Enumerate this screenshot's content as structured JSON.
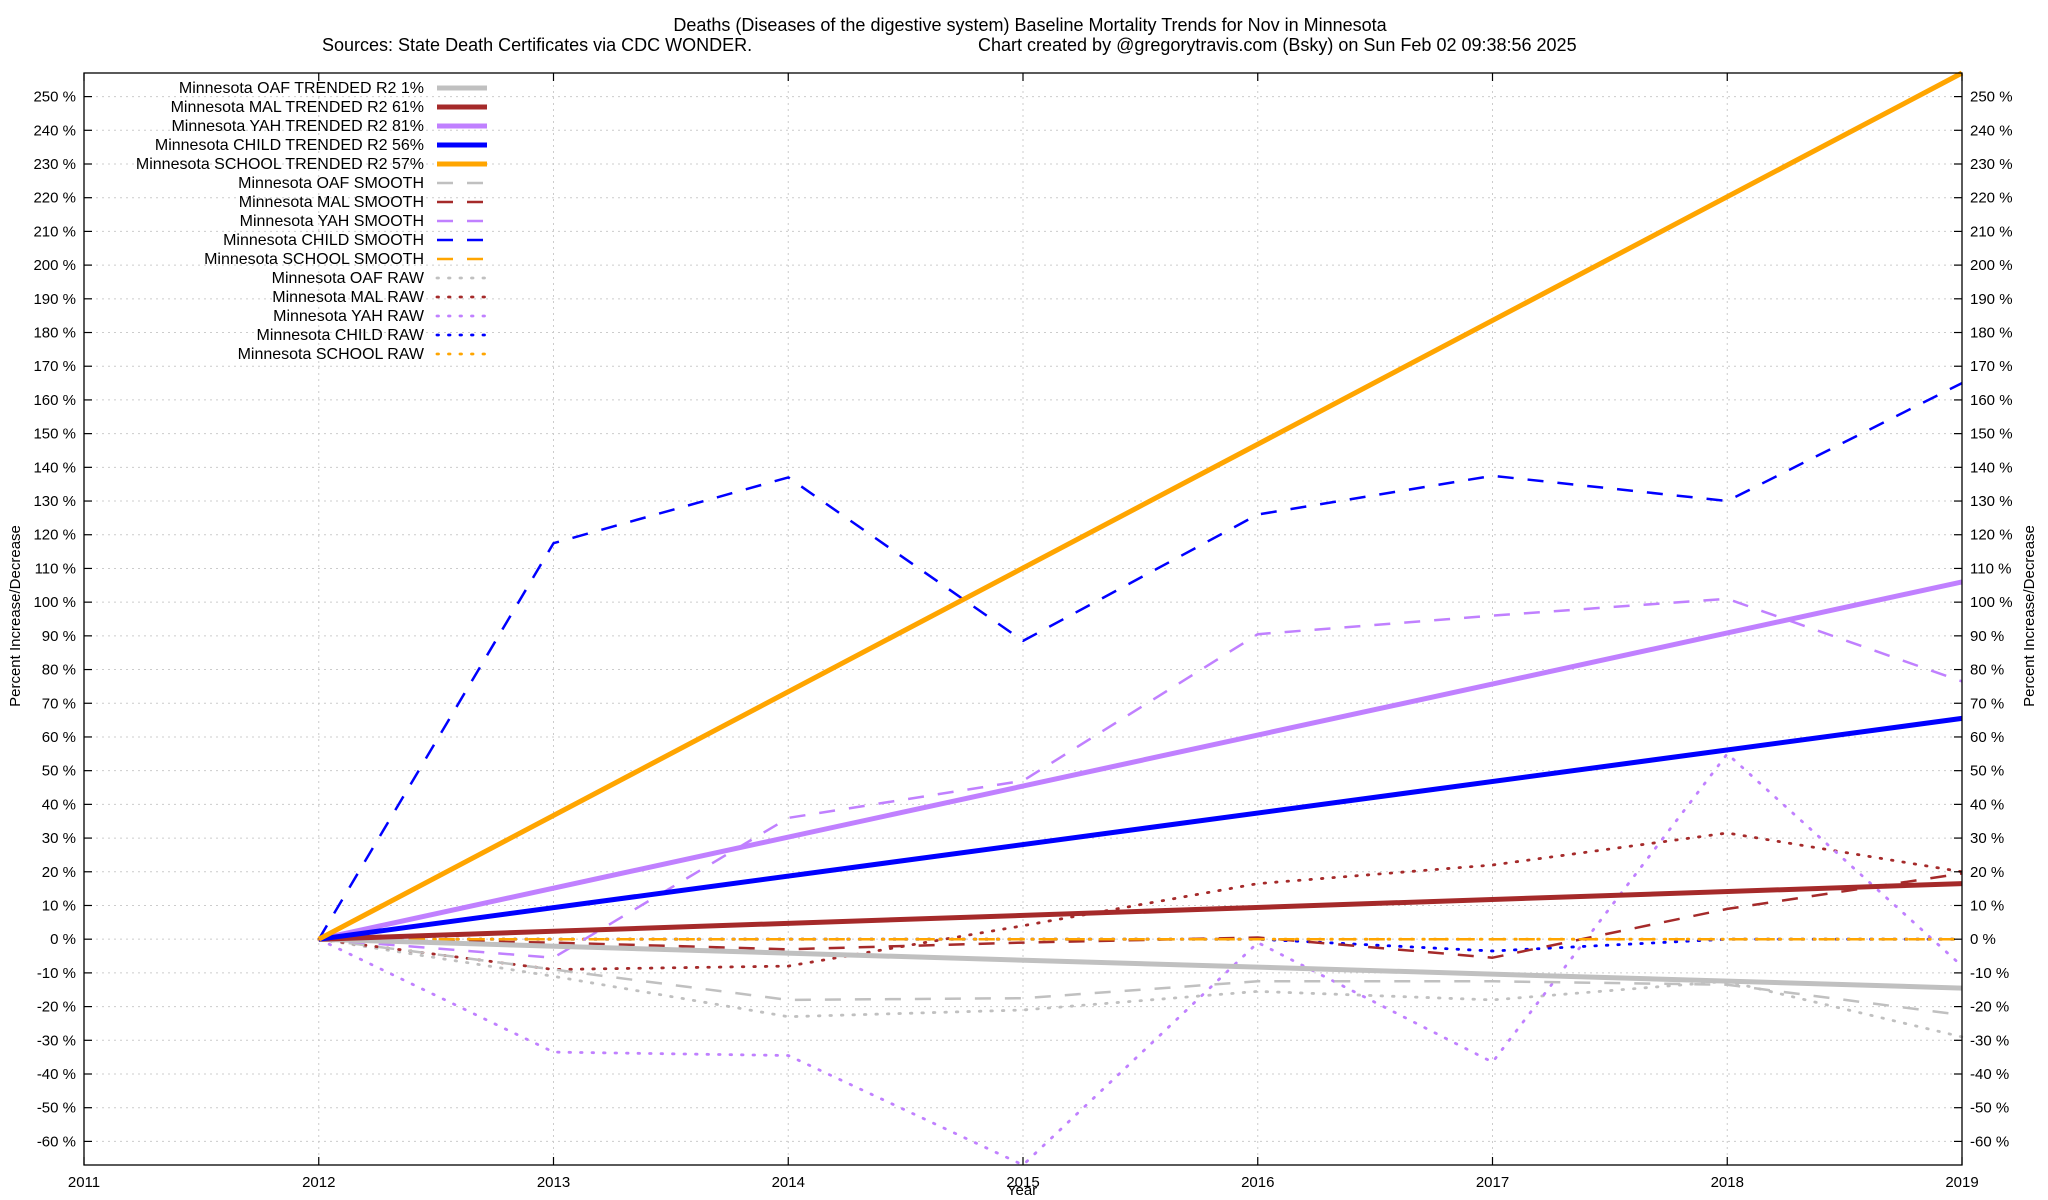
{
  "chart_data": {
    "type": "line",
    "title": "Deaths (Diseases of the digestive system)  Baseline Mortality Trends for Nov in Minnesota",
    "subtitle_left": "Sources: State Death Certificates via CDC WONDER.",
    "subtitle_right": "Chart created by @gregorytravis.com (Bsky) on Sun Feb 02 09:38:56 2025",
    "xlabel": "Year",
    "ylabel": "Percent Increase/Decrease",
    "ylabel_right": "Percent Increase/Decrease",
    "xlim": [
      2011,
      2019
    ],
    "ylim": [
      -67,
      257
    ],
    "x_ticks": [
      2011,
      2012,
      2013,
      2014,
      2015,
      2016,
      2017,
      2018,
      2019
    ],
    "y_ticks": [
      -60,
      -50,
      -40,
      -30,
      -20,
      -10,
      0,
      10,
      20,
      30,
      40,
      50,
      60,
      70,
      80,
      90,
      100,
      110,
      120,
      130,
      140,
      150,
      160,
      170,
      180,
      190,
      200,
      210,
      220,
      230,
      240,
      250
    ],
    "y_tick_suffix": " %",
    "grid": true,
    "legend_position": "top-left",
    "colors": {
      "OAF": "#c0c0c0",
      "MAL": "#a52a2a",
      "YAH": "#c080ff",
      "CHILD": "#0000ff",
      "SCHOOL": "#ffa500"
    },
    "series": [
      {
        "name": "Minnesota OAF TRENDED R2  1%",
        "group": "OAF",
        "style": "trended",
        "x": [
          2012,
          2019
        ],
        "values": [
          0,
          -14.5
        ]
      },
      {
        "name": "Minnesota MAL TRENDED R2  61%",
        "group": "MAL",
        "style": "trended",
        "x": [
          2012,
          2019
        ],
        "values": [
          0,
          16.5
        ]
      },
      {
        "name": "Minnesota YAH TRENDED R2  81%",
        "group": "YAH",
        "style": "trended",
        "x": [
          2012,
          2019
        ],
        "values": [
          0,
          106
        ]
      },
      {
        "name": "Minnesota CHILD TRENDED R2  56%",
        "group": "CHILD",
        "style": "trended",
        "x": [
          2012,
          2019
        ],
        "values": [
          0,
          65.5
        ]
      },
      {
        "name": "Minnesota SCHOOL TRENDED R2  57%",
        "group": "SCHOOL",
        "style": "trended",
        "x": [
          2012,
          2019
        ],
        "values": [
          0,
          257
        ]
      },
      {
        "name": "Minnesota OAF SMOOTH",
        "group": "OAF",
        "style": "smooth",
        "x": [
          2012,
          2013,
          2014,
          2015,
          2016,
          2017,
          2018,
          2019
        ],
        "values": [
          0,
          -9,
          -18,
          -17.5,
          -12.5,
          -12.5,
          -13.5,
          -22.5
        ]
      },
      {
        "name": "Minnesota MAL SMOOTH",
        "group": "MAL",
        "style": "smooth",
        "x": [
          2012,
          2013,
          2014,
          2015,
          2016,
          2017,
          2018,
          2019
        ],
        "values": [
          0,
          -1,
          -3,
          -1,
          0.5,
          -5.5,
          9,
          19.5
        ]
      },
      {
        "name": "Minnesota YAH SMOOTH",
        "group": "YAH",
        "style": "smooth",
        "x": [
          2012,
          2013,
          2014,
          2015,
          2016,
          2017,
          2018,
          2019
        ],
        "values": [
          0,
          -5.5,
          36,
          47,
          90.5,
          96,
          101,
          76.5
        ]
      },
      {
        "name": "Minnesota CHILD SMOOTH",
        "group": "CHILD",
        "style": "smooth",
        "x": [
          2012,
          2013,
          2014,
          2015,
          2016,
          2017,
          2018,
          2019
        ],
        "values": [
          0,
          117.5,
          137,
          88.5,
          126,
          137.5,
          130,
          165
        ]
      },
      {
        "name": "Minnesota SCHOOL SMOOTH",
        "group": "SCHOOL",
        "style": "smooth",
        "x": [
          2012,
          2013,
          2014,
          2015,
          2016,
          2017,
          2018,
          2019
        ],
        "values": [
          0,
          0,
          0,
          0,
          0,
          0,
          0,
          0
        ]
      },
      {
        "name": "Minnesota OAF RAW",
        "group": "OAF",
        "style": "raw",
        "x": [
          2012,
          2013,
          2014,
          2015,
          2016,
          2017,
          2018,
          2019
        ],
        "values": [
          0,
          -11,
          -23,
          -21,
          -15.5,
          -18,
          -12.5,
          -29
        ]
      },
      {
        "name": "Minnesota MAL RAW",
        "group": "MAL",
        "style": "raw",
        "x": [
          2012,
          2013,
          2014,
          2015,
          2016,
          2017,
          2018,
          2019
        ],
        "values": [
          0,
          -9,
          -8,
          4,
          16.5,
          22,
          31.5,
          20
        ]
      },
      {
        "name": "Minnesota YAH RAW",
        "group": "YAH",
        "style": "raw",
        "x": [
          2012,
          2013,
          2014,
          2015,
          2016,
          2017,
          2018,
          2019
        ],
        "values": [
          0,
          -33.5,
          -34.5,
          -67,
          -1,
          -36.5,
          55,
          -8
        ]
      },
      {
        "name": "Minnesota CHILD RAW",
        "group": "CHILD",
        "style": "raw",
        "x": [
          2012,
          2013,
          2014,
          2015,
          2016,
          2017,
          2018,
          2019
        ],
        "values": [
          0,
          0,
          0,
          0,
          0,
          -3.5,
          0,
          0
        ]
      },
      {
        "name": "Minnesota SCHOOL RAW",
        "group": "SCHOOL",
        "style": "raw",
        "x": [
          2012,
          2013,
          2014,
          2015,
          2016,
          2017,
          2018,
          2019
        ],
        "values": [
          0,
          0,
          0,
          0,
          0,
          0,
          0,
          0
        ]
      }
    ]
  }
}
